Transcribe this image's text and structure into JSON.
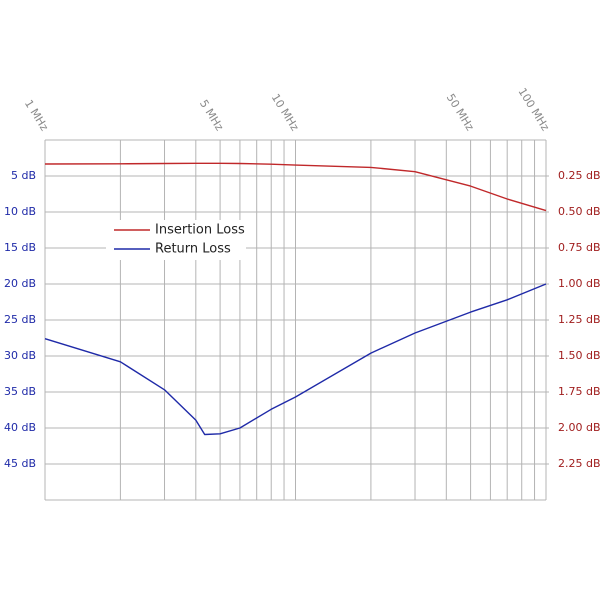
{
  "chart_data": {
    "type": "line",
    "x": [
      1,
      2,
      3,
      4,
      4.34,
      5,
      6,
      8,
      10,
      20,
      30,
      50,
      70,
      100
    ],
    "series": [
      {
        "name": "Insertion Loss",
        "color": "#c0282a",
        "axis": "y2",
        "values": [
          0.167,
          0.165,
          0.163,
          0.162,
          0.162,
          0.162,
          0.163,
          0.168,
          0.174,
          0.19,
          0.22,
          0.32,
          0.41,
          0.49
        ]
      },
      {
        "name": "Return Loss",
        "color": "#1f2aa8",
        "values": [
          27.6,
          30.8,
          34.7,
          38.9,
          40.9,
          40.8,
          40.0,
          37.4,
          35.7,
          29.6,
          26.8,
          23.9,
          22.2,
          20.0
        ]
      }
    ],
    "xlim": [
      1,
      100
    ],
    "xlog": true,
    "xticks": [
      {
        "value": 1,
        "label": "1 MHz"
      },
      {
        "value": 5,
        "label": "5 MHz"
      },
      {
        "value": 10,
        "label": "10 MHz"
      },
      {
        "value": 50,
        "label": "50 MHz"
      },
      {
        "value": 100,
        "label": "100 MHz"
      }
    ],
    "xminorticks": [
      2,
      3,
      4,
      6,
      7,
      8,
      9,
      20,
      30,
      40,
      60,
      70,
      80,
      90
    ],
    "ylim": [
      0,
      50
    ],
    "yinverted": true,
    "yticks": [
      {
        "value": 5,
        "label": "5 dB"
      },
      {
        "value": 10,
        "label": "10 dB"
      },
      {
        "value": 15,
        "label": "15 dB"
      },
      {
        "value": 20,
        "label": "20 dB"
      },
      {
        "value": 25,
        "label": "25 dB"
      },
      {
        "value": 30,
        "label": "30 dB"
      },
      {
        "value": 35,
        "label": "35 dB"
      },
      {
        "value": 40,
        "label": "40 dB"
      },
      {
        "value": 45,
        "label": "45 dB"
      }
    ],
    "y2lim": [
      0,
      2.5
    ],
    "y2ticks": [
      {
        "value": 0.25,
        "label": "0.25 dB"
      },
      {
        "value": 0.5,
        "label": "0.50 dB"
      },
      {
        "value": 0.75,
        "label": "0.75 dB"
      },
      {
        "value": 1.0,
        "label": "1.00 dB"
      },
      {
        "value": 1.25,
        "label": "1.25 dB"
      },
      {
        "value": 1.5,
        "label": "1.50 dB"
      },
      {
        "value": 1.75,
        "label": "1.75 dB"
      },
      {
        "value": 2.0,
        "label": "2.00 dB"
      },
      {
        "value": 2.25,
        "label": "2.25 dB"
      }
    ],
    "grid": true,
    "legend_loc": "upper left"
  }
}
